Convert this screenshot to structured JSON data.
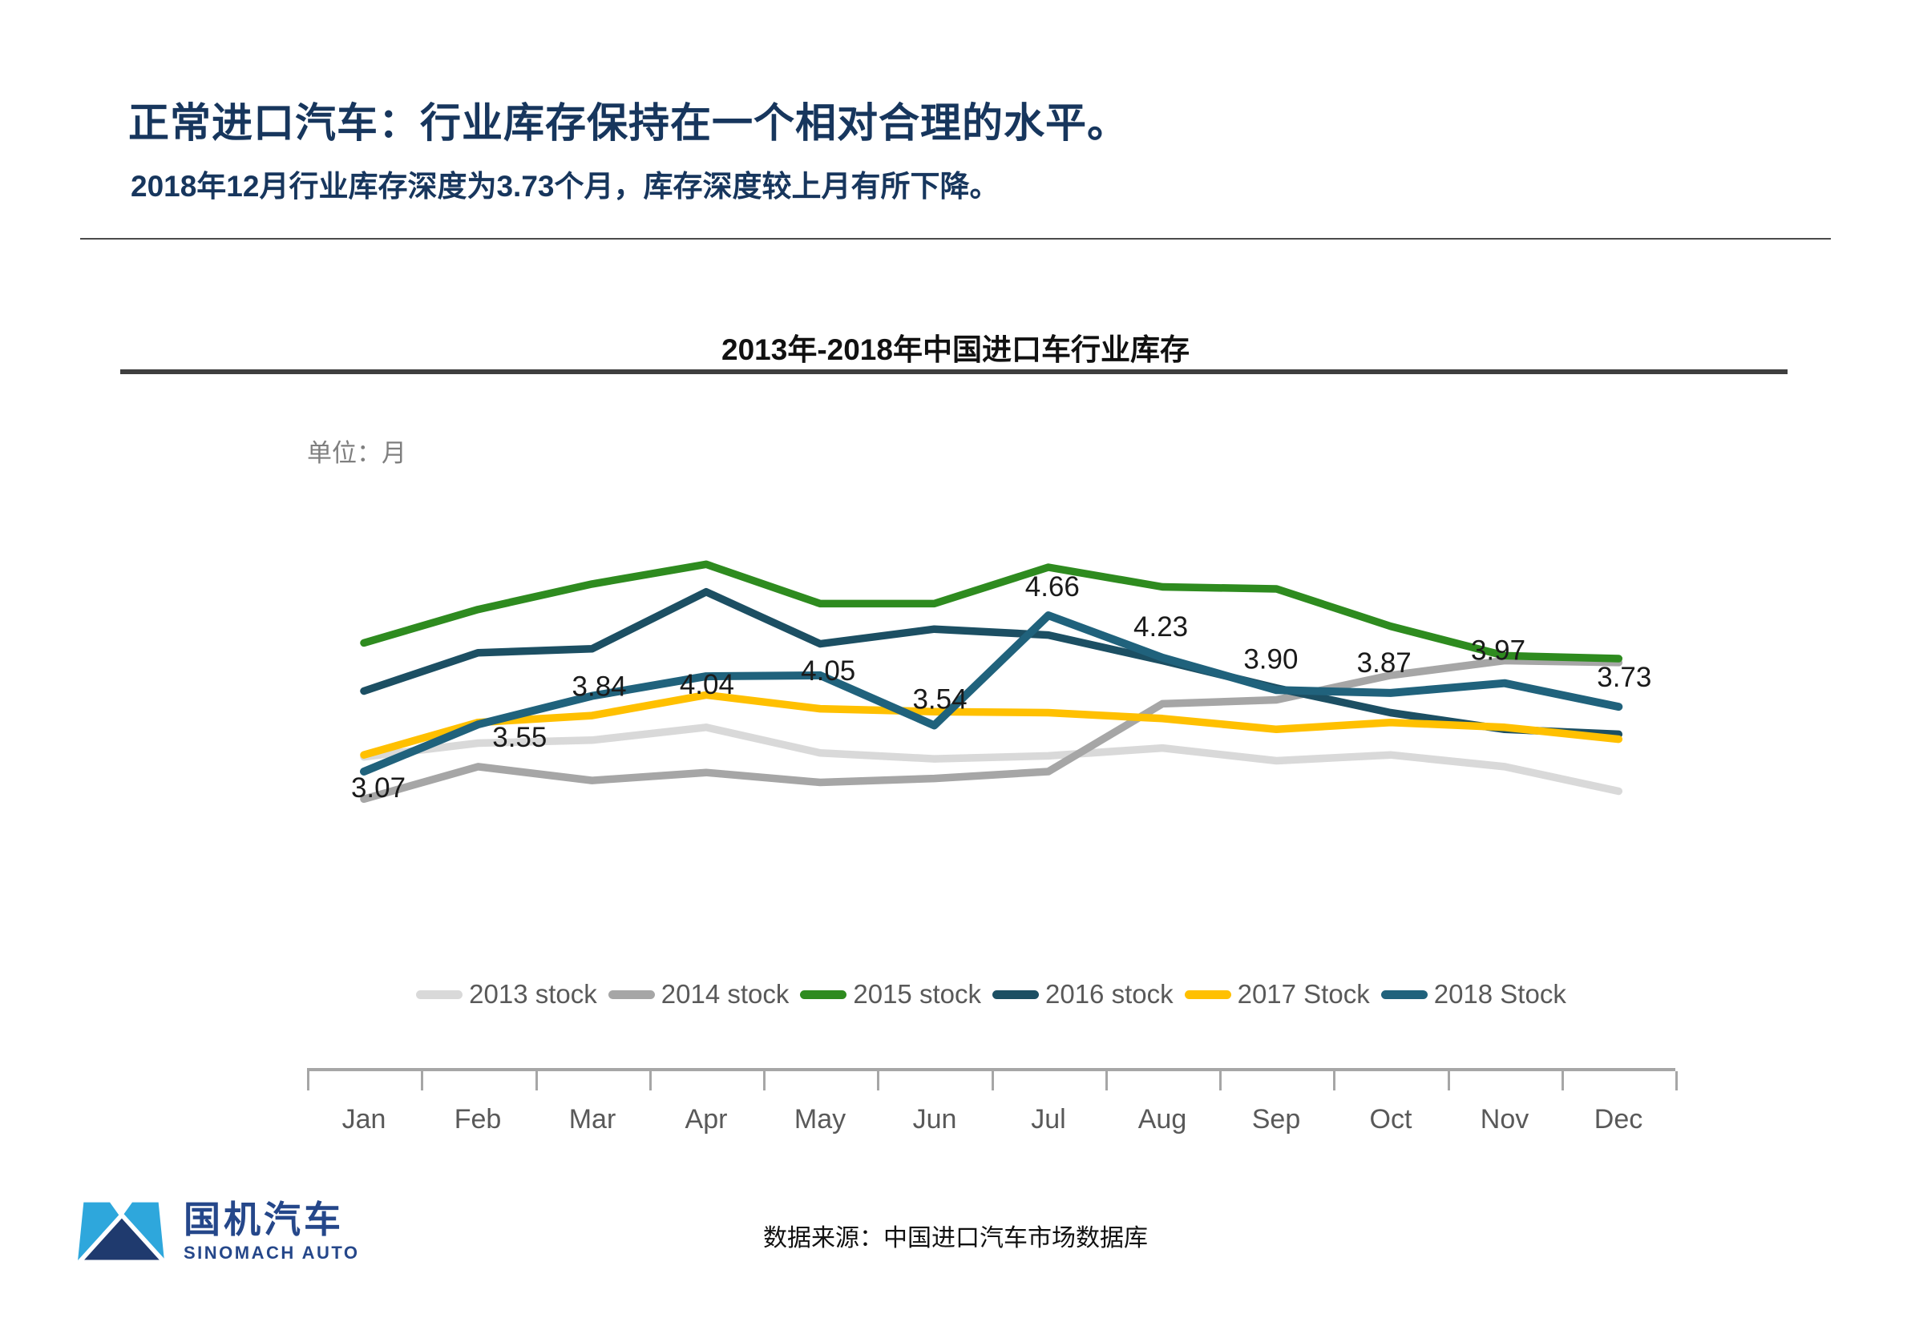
{
  "page": {
    "title": "正常进口汽车：行业库存保持在一个相对合理的水平。",
    "subtitle": "2018年12月行业库存深度为3.73个月，库存深度较上月有所下降。",
    "source_note": "数据来源：中国进口汽车市场数据库",
    "logo": {
      "name_cn": "国机汽车",
      "name_en": "SINOMACH AUTO"
    }
  },
  "colors": {
    "title_navy": "#17365D",
    "logo_navy": "#25478A",
    "logo_light_blue": "#2EA7DC",
    "axis_gray": "#A6A6A6",
    "text_gray": "#595959"
  },
  "chart_data": {
    "type": "line",
    "title": "2013年-2018年中国进口车行业库存",
    "unit_label": "单位：月",
    "ylabel": "月",
    "categories": [
      "Jan",
      "Feb",
      "Mar",
      "Apr",
      "May",
      "Jun",
      "Jul",
      "Aug",
      "Sep",
      "Oct",
      "Nov",
      "Dec"
    ],
    "ylim": [
      2.5,
      5.5
    ],
    "grid": false,
    "legend_position": "bottom",
    "series": [
      {
        "name": "2013 stock",
        "color": "#D9D9D9",
        "values": [
          3.22,
          3.36,
          3.39,
          3.52,
          3.26,
          3.2,
          3.23,
          3.31,
          3.18,
          3.24,
          3.12,
          2.87
        ]
      },
      {
        "name": "2014 stock",
        "color": "#A6A6A6",
        "values": [
          2.79,
          3.12,
          2.98,
          3.06,
          2.96,
          3.0,
          3.07,
          3.76,
          3.8,
          4.05,
          4.2,
          4.18
        ]
      },
      {
        "name": "2015 stock",
        "color": "#2E8B1F",
        "values": [
          4.38,
          4.72,
          4.98,
          5.18,
          4.78,
          4.78,
          5.15,
          4.95,
          4.93,
          4.55,
          4.25,
          4.22
        ]
      },
      {
        "name": "2016 stock",
        "color": "#1C4F63",
        "values": [
          3.89,
          4.28,
          4.32,
          4.9,
          4.37,
          4.52,
          4.46,
          4.2,
          3.92,
          3.67,
          3.5,
          3.45
        ]
      },
      {
        "name": "2017 Stock",
        "color": "#FFC000",
        "values": [
          3.24,
          3.57,
          3.64,
          3.85,
          3.71,
          3.68,
          3.67,
          3.61,
          3.5,
          3.57,
          3.52,
          3.4
        ]
      },
      {
        "name": "2018 Stock",
        "color": "#20627C",
        "values": [
          3.07,
          3.55,
          3.84,
          4.04,
          4.05,
          3.54,
          4.66,
          4.23,
          3.9,
          3.87,
          3.97,
          3.73
        ],
        "data_labels": [
          "3.07",
          "3.55",
          "3.84",
          "4.04",
          "4.05",
          "3.54",
          "4.66",
          "4.23",
          "3.90",
          "3.87",
          "3.97",
          "3.73"
        ]
      }
    ]
  }
}
